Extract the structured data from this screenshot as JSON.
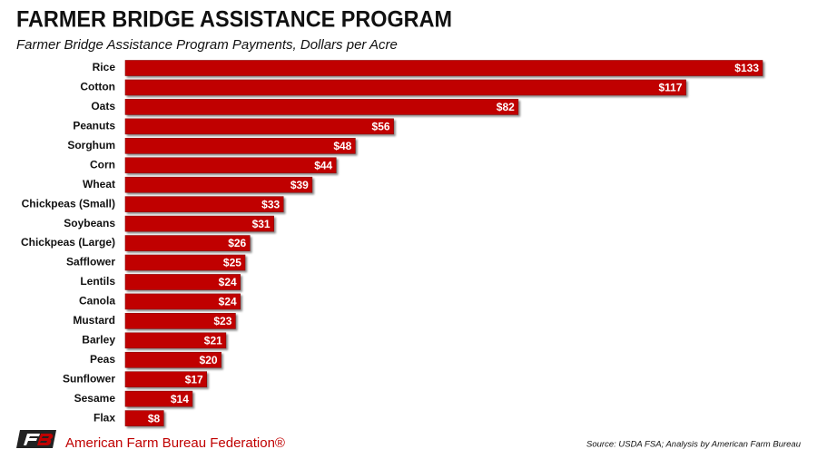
{
  "chart_data": {
    "type": "hbar",
    "title": "FARMER BRIDGE ASSISTANCE PROGRAM",
    "subtitle": "Farmer Bridge Assistance Program Payments, Dollars per Acre",
    "categories": [
      "Rice",
      "Cotton",
      "Oats",
      "Peanuts",
      "Sorghum",
      "Corn",
      "Wheat",
      "Chickpeas (Small)",
      "Soybeans",
      "Chickpeas (Large)",
      "Safflower",
      "Lentils",
      "Canola",
      "Mustard",
      "Barley",
      "Peas",
      "Sunflower",
      "Sesame",
      "Flax"
    ],
    "values": [
      133,
      117,
      82,
      56,
      48,
      44,
      39,
      33,
      31,
      26,
      25,
      24,
      24,
      23,
      21,
      20,
      17,
      14,
      8
    ],
    "value_labels": [
      "$133",
      "$117",
      "$82",
      "$56",
      "$48",
      "$44",
      "$39",
      "$33",
      "$31",
      "$26",
      "$25",
      "$24",
      "$24",
      "$23",
      "$21",
      "$20",
      "$17",
      "$14",
      "$8"
    ],
    "color": "#c00000"
  },
  "footer": {
    "organization": "American Farm Bureau Federation®",
    "source": "Source: USDA FSA; Analysis by American Farm Bureau"
  }
}
